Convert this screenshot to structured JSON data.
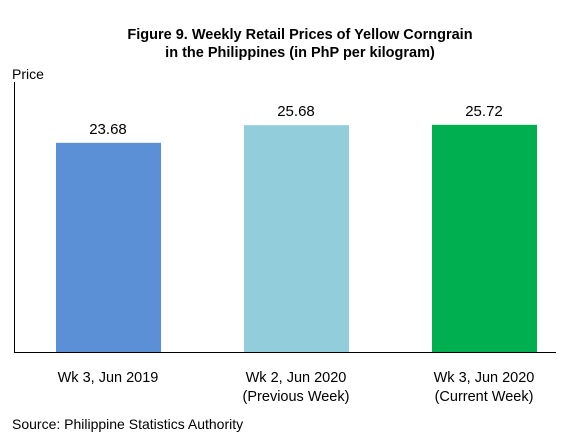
{
  "chart_data": {
    "type": "bar",
    "title": "Figure 9. Weekly Retail Prices of Yellow Corngrain\nin the Philippines (in PhP per kilogram)",
    "y_label": "Price",
    "categories": [
      "Wk 3, Jun 2019",
      "Wk 2, Jun 2020\n(Previous Week)",
      "Wk 3, Jun 2020\n(Current Week)"
    ],
    "values": [
      23.68,
      25.68,
      25.72
    ],
    "colors": [
      "#5b8fd6",
      "#92cddc",
      "#00b050"
    ],
    "ylim": [
      0,
      30
    ],
    "source": "Source: Philippine Statistics Authority"
  }
}
